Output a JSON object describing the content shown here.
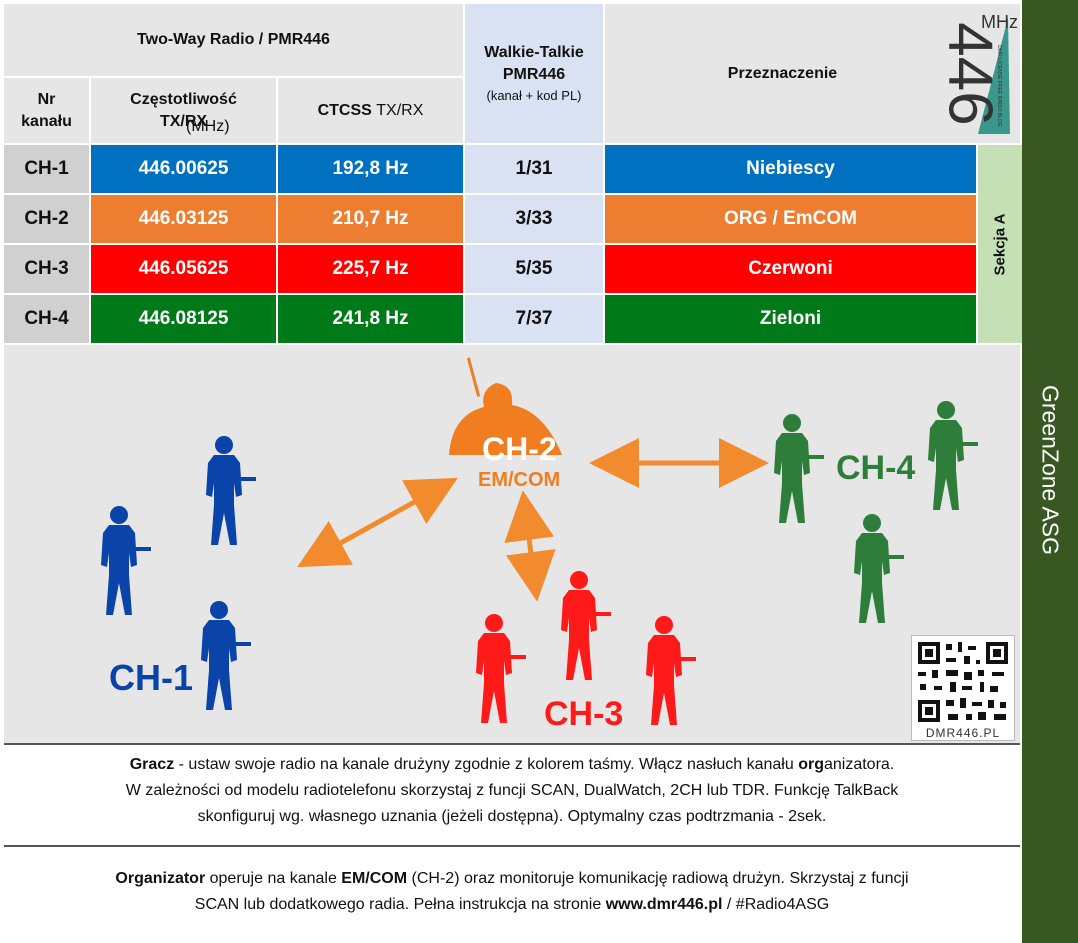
{
  "header": {
    "title": "Two-Way Radio / PMR446",
    "col_nr": "Nr kanału",
    "col_freq_main": "Częstotliwość TX/RX",
    "col_freq_unit": "(MHz)",
    "col_ctcss_main": "CTCSS",
    "col_ctcss_sub": "TX/RX",
    "wt_title": "Walkie-Talkie PMR446",
    "wt_sub": "(kanał + kod PL)",
    "purpose": "Przeznaczenie",
    "logo_text": "446",
    "logo_unit": "MHz",
    "logo_tagline": "DMR LICENSE FREE RADIO BLOG"
  },
  "rows": [
    {
      "ch": "CH-1",
      "freq": "446.00625",
      "ctcss": "192,8 Hz",
      "wt": "1/31",
      "purpose": "Niebiescy",
      "color": "#0070c0"
    },
    {
      "ch": "CH-2",
      "freq": "446.03125",
      "ctcss": "210,7 Hz",
      "wt": "3/33",
      "purpose": "ORG / EmCOM",
      "color": "#ed7d31"
    },
    {
      "ch": "CH-3",
      "freq": "446.05625",
      "ctcss": "225,7 Hz",
      "wt": "5/35",
      "purpose": "Czerwoni",
      "color": "#ff0000"
    },
    {
      "ch": "CH-4",
      "freq": "446.08125",
      "ctcss": "241,8 Hz",
      "wt": "7/37",
      "purpose": "Zieloni",
      "color": "#007a18"
    }
  ],
  "section_label": "Sekcja A",
  "side_label": "GreenZone ASG",
  "illustration": {
    "ch1": "CH-1",
    "ch2": "CH-2",
    "ch2_sub": "EM/COM",
    "ch3": "CH-3",
    "ch4": "CH-4",
    "qr_caption": "DMR446.PL",
    "colors": {
      "blue": "#0a44a8",
      "orange": "#f07d1f",
      "red": "#ff1a1a",
      "green": "#2e7d3a"
    }
  },
  "notes": {
    "gracz_bold": "Gracz",
    "gracz_text_1": " - ustaw swoje radio na kanale drużyny zgodnie z kolorem taśmy. Włącz nasłuch kanału ",
    "gracz_org_bold": "org",
    "gracz_text_2": "anizatora.",
    "gracz_line2": "W zależności od modelu radiotelefonu skorzystaj z funcji SCAN, DualWatch, 2CH lub TDR. Funkcję TalkBack",
    "gracz_line3": "skonfiguruj wg. własnego uznania (jeżeli dostępna). Optymalny czas podtrzmania - 2sek.",
    "org_bold": "Organizator",
    "org_text_1": " operuje na kanale ",
    "org_emcom_bold": "EM/COM",
    "org_text_2": " (CH-2) oraz monitoruje komunikację radiową drużyn. Skrzystaj z funcji",
    "org_line2_a": "SCAN lub dodatkowego radia. Pełna instrukcja na stronie ",
    "org_url_bold": "www.dmr446.pl",
    "org_line2_b": " / #Radio4ASG"
  }
}
